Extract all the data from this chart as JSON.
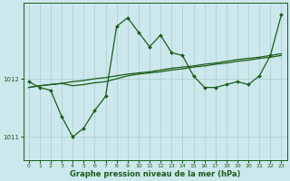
{
  "bg_color": "#cce8ec",
  "grid_color": "#aacccc",
  "line_color": "#1a5c1a",
  "marker_color": "#1a5c1a",
  "xlabel": "Graphe pression niveau de la mer (hPa)",
  "xlabel_fontsize": 6.0,
  "xlim": [
    -0.5,
    23.5
  ],
  "ylim": [
    1010.6,
    1013.3
  ],
  "yticks": [
    1011,
    1012
  ],
  "xticks": [
    0,
    1,
    2,
    3,
    4,
    5,
    6,
    7,
    8,
    9,
    10,
    11,
    12,
    13,
    14,
    15,
    16,
    17,
    18,
    19,
    20,
    21,
    22,
    23
  ],
  "series1_x": [
    0,
    1,
    2,
    3,
    4,
    5,
    6,
    7,
    8,
    9,
    10,
    11,
    12,
    13,
    14,
    15,
    16,
    17,
    18,
    19,
    20,
    21,
    22,
    23
  ],
  "series1_y": [
    1011.85,
    1011.88,
    1011.9,
    1011.92,
    1011.95,
    1011.97,
    1012.0,
    1012.02,
    1012.05,
    1012.08,
    1012.1,
    1012.12,
    1012.15,
    1012.18,
    1012.2,
    1012.22,
    1012.25,
    1012.27,
    1012.3,
    1012.33,
    1012.35,
    1012.37,
    1012.4,
    1012.43
  ],
  "series2_x": [
    0,
    1,
    2,
    3,
    4,
    5,
    6,
    7,
    8,
    9,
    10,
    11,
    12,
    13,
    14,
    15,
    16,
    17,
    18,
    19,
    20,
    21,
    22,
    23
  ],
  "series2_y": [
    1011.85,
    1011.88,
    1011.9,
    1011.92,
    1011.88,
    1011.9,
    1011.93,
    1011.95,
    1012.0,
    1012.05,
    1012.08,
    1012.1,
    1012.12,
    1012.15,
    1012.17,
    1012.2,
    1012.22,
    1012.25,
    1012.27,
    1012.3,
    1012.32,
    1012.35,
    1012.37,
    1012.4
  ],
  "series3_x": [
    0,
    1,
    2,
    3,
    4,
    5,
    6,
    7,
    8,
    9,
    10,
    11,
    12,
    13,
    14,
    15,
    16,
    17,
    18,
    19,
    20,
    21,
    22,
    23
  ],
  "series3_y": [
    1011.95,
    1011.85,
    1011.8,
    1011.35,
    1011.0,
    1011.15,
    1011.45,
    1011.7,
    1012.9,
    1013.05,
    1012.8,
    1012.55,
    1012.75,
    1012.45,
    1012.4,
    1012.05,
    1011.85,
    1011.85,
    1011.9,
    1011.95,
    1011.9,
    1012.05,
    1012.4,
    1013.1
  ]
}
